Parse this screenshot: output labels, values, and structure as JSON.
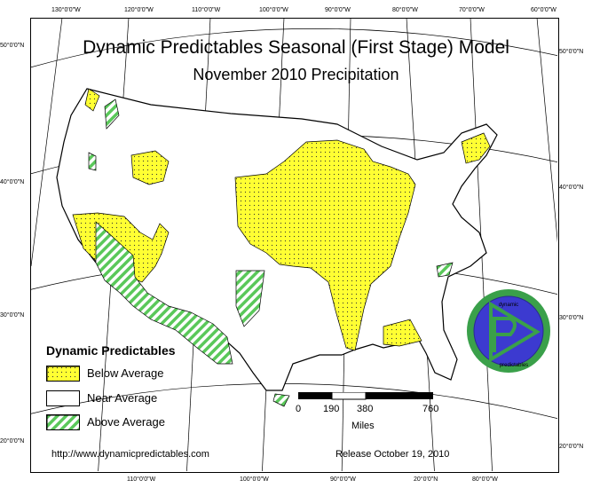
{
  "titles": {
    "line1": "Dynamic Predictables Seasonal (First Stage) Model",
    "line2": "November 2010 Precipitation"
  },
  "legend": {
    "title": "Dynamic Predictables",
    "items": [
      {
        "label": "Below Average",
        "pattern": "yellow-dots"
      },
      {
        "label": "Near Average",
        "pattern": "white"
      },
      {
        "label": "Above Average",
        "pattern": "green-hatch"
      }
    ]
  },
  "scale_bar": {
    "ticks": [
      "0",
      "190",
      "380",
      "760"
    ],
    "unit": "Miles"
  },
  "footer": {
    "url": "http://www.dynamicpredictables.com",
    "release": "Release October 19, 2010"
  },
  "graticule": {
    "top": [
      "130°0'0\"W",
      "120°0'0\"W",
      "110°0'0\"W",
      "100°0'0\"W",
      "90°0'0\"W",
      "80°0'0\"W",
      "70°0'0\"W",
      "60°0'0\"W"
    ],
    "bottom": [
      "110°0'0\"W",
      "100°0'0\"W",
      "90°0'0\"W",
      "80°0'0\"W"
    ],
    "bottom_extra": "20°0'0\"N",
    "left": [
      "50°0'0\"N",
      "40°0'0\"N",
      "30°0'0\"N",
      "20°0'0\"N"
    ],
    "right": [
      "50°0'0\"N",
      "40°0'0\"N",
      "30°0'0\"N",
      "20°0'0\"N"
    ]
  },
  "logo": {
    "top_text": "dynamic",
    "bottom_text": "predictables"
  },
  "colors": {
    "below_fill": "#ffff33",
    "above_hatch": "#5ac85a",
    "logo_ring": "#3aa04a",
    "logo_disc": "#3c3ad0"
  }
}
